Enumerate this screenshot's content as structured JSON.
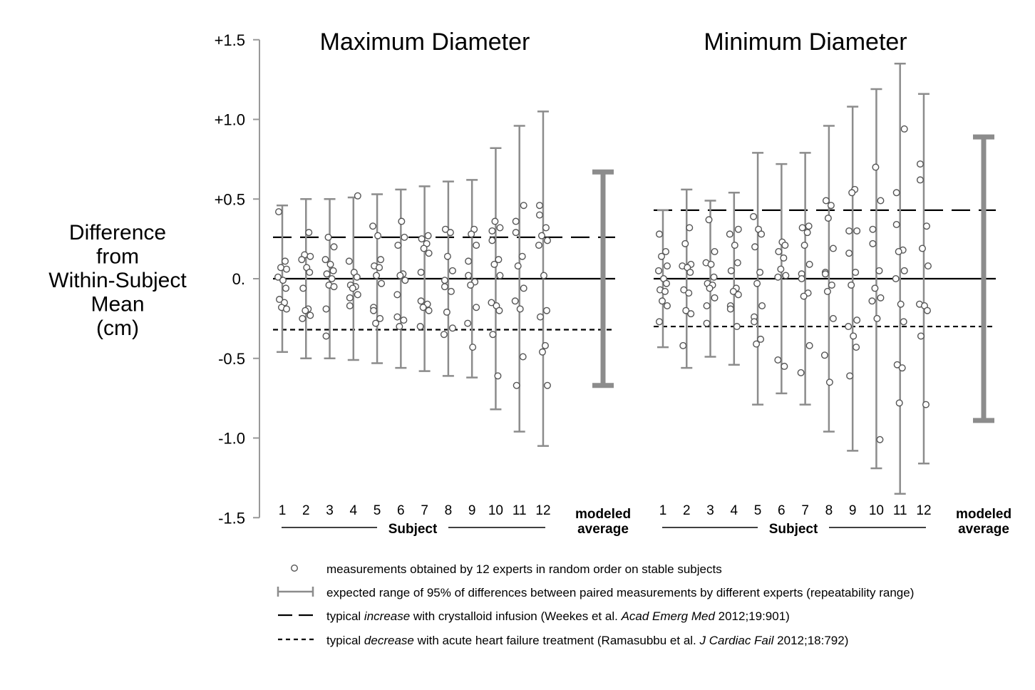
{
  "chart_data": {
    "type": "scatter",
    "ylabel_lines": [
      "Difference",
      "from",
      "Within-Subject",
      "Mean",
      "(cm)"
    ],
    "y_ticks": [
      {
        "value": 1.5,
        "label": "+1.5"
      },
      {
        "value": 1.0,
        "label": "+1.0"
      },
      {
        "value": 0.5,
        "label": "+0.5"
      },
      {
        "value": 0.0,
        "label": "0."
      },
      {
        "value": -0.5,
        "label": "-0.5"
      },
      {
        "value": -1.0,
        "label": "-1.0"
      },
      {
        "value": -1.5,
        "label": "-1.5"
      }
    ],
    "ylim": [
      -1.5,
      1.5
    ],
    "subject_axis_label": "Subject",
    "modeled_label_lines": [
      "modeled",
      "average"
    ],
    "panels": [
      {
        "title": "Maximum Diameter",
        "increase_line": 0.26,
        "decrease_line": -0.32,
        "modeled_average_range": 0.67,
        "subjects": [
          {
            "label": "1",
            "range": 0.46,
            "points": [
              0.42,
              0.11,
              0.07,
              0.06,
              0.01,
              -0.01,
              -0.06,
              -0.13,
              -0.15,
              -0.18,
              -0.19
            ]
          },
          {
            "label": "2",
            "range": 0.5,
            "points": [
              0.29,
              0.15,
              0.14,
              0.12,
              0.07,
              0.04,
              -0.06,
              -0.19,
              -0.2,
              -0.23,
              -0.25
            ]
          },
          {
            "label": "3",
            "range": 0.5,
            "points": [
              0.26,
              0.2,
              0.12,
              0.09,
              0.05,
              0.03,
              0.0,
              -0.04,
              -0.05,
              -0.19,
              -0.36
            ]
          },
          {
            "label": "4",
            "range": 0.51,
            "points": [
              0.52,
              0.11,
              0.04,
              0.01,
              -0.04,
              -0.05,
              -0.06,
              -0.1,
              -0.12,
              -0.17
            ]
          },
          {
            "label": "5",
            "range": 0.53,
            "points": [
              0.33,
              0.27,
              0.12,
              0.08,
              0.07,
              0.02,
              -0.03,
              -0.18,
              -0.2,
              -0.25,
              -0.28
            ]
          },
          {
            "label": "6",
            "range": 0.56,
            "points": [
              0.36,
              0.26,
              0.21,
              0.03,
              0.02,
              -0.01,
              -0.1,
              -0.24,
              -0.26,
              -0.3
            ]
          },
          {
            "label": "7",
            "range": 0.58,
            "points": [
              0.27,
              0.25,
              0.22,
              0.19,
              0.16,
              0.04,
              -0.14,
              -0.16,
              -0.18,
              -0.2,
              -0.3
            ]
          },
          {
            "label": "8",
            "range": 0.61,
            "points": [
              0.31,
              0.29,
              0.14,
              0.05,
              -0.01,
              -0.05,
              -0.08,
              -0.21,
              -0.31,
              -0.35
            ]
          },
          {
            "label": "9",
            "range": 0.62,
            "points": [
              0.31,
              0.28,
              0.21,
              0.11,
              0.02,
              -0.02,
              -0.04,
              -0.18,
              -0.28,
              -0.43
            ]
          },
          {
            "label": "10",
            "range": 0.82,
            "points": [
              0.36,
              0.32,
              0.3,
              0.24,
              0.12,
              0.09,
              0.02,
              -0.15,
              -0.17,
              -0.2,
              -0.35,
              -0.61
            ]
          },
          {
            "label": "11",
            "range": 0.96,
            "points": [
              0.46,
              0.36,
              0.29,
              0.14,
              0.08,
              -0.06,
              -0.14,
              -0.19,
              -0.49,
              -0.67
            ]
          },
          {
            "label": "12",
            "range": 1.05,
            "points": [
              0.46,
              0.4,
              0.32,
              0.27,
              0.24,
              0.21,
              0.02,
              -0.2,
              -0.24,
              -0.42,
              -0.46,
              -0.67
            ]
          }
        ]
      },
      {
        "title": "Minimum Diameter",
        "increase_line": 0.43,
        "decrease_line": -0.3,
        "modeled_average_range": 0.89,
        "subjects": [
          {
            "label": "1",
            "range": 0.43,
            "points": [
              0.28,
              0.17,
              0.14,
              0.08,
              0.05,
              0.0,
              -0.03,
              -0.07,
              -0.08,
              -0.14,
              -0.17,
              -0.27
            ]
          },
          {
            "label": "2",
            "range": 0.56,
            "points": [
              0.32,
              0.22,
              0.09,
              0.08,
              0.07,
              0.04,
              -0.07,
              -0.09,
              -0.2,
              -0.22,
              -0.42
            ]
          },
          {
            "label": "3",
            "range": 0.49,
            "points": [
              0.37,
              0.17,
              0.1,
              0.09,
              0.01,
              -0.03,
              -0.04,
              -0.06,
              -0.12,
              -0.17,
              -0.28
            ]
          },
          {
            "label": "4",
            "range": 0.54,
            "points": [
              0.31,
              0.28,
              0.21,
              0.1,
              0.05,
              -0.06,
              -0.08,
              -0.1,
              -0.17,
              -0.19,
              -0.3
            ]
          },
          {
            "label": "5",
            "range": 0.79,
            "points": [
              0.39,
              0.31,
              0.28,
              0.2,
              0.04,
              -0.03,
              -0.17,
              -0.24,
              -0.27,
              -0.38,
              -0.41
            ]
          },
          {
            "label": "6",
            "range": 0.72,
            "points": [
              0.23,
              0.21,
              0.17,
              0.13,
              0.06,
              0.02,
              0.01,
              -0.51,
              -0.55
            ]
          },
          {
            "label": "7",
            "range": 0.79,
            "points": [
              0.33,
              0.32,
              0.29,
              0.21,
              0.09,
              0.03,
              0.0,
              -0.09,
              -0.11,
              -0.42,
              -0.59
            ]
          },
          {
            "label": "8",
            "range": 0.96,
            "points": [
              0.49,
              0.46,
              0.38,
              0.19,
              0.04,
              0.03,
              -0.04,
              -0.08,
              -0.25,
              -0.48,
              -0.65
            ]
          },
          {
            "label": "9",
            "range": 1.08,
            "points": [
              0.56,
              0.54,
              0.3,
              0.3,
              0.16,
              0.04,
              -0.04,
              -0.26,
              -0.3,
              -0.36,
              -0.43,
              -0.61
            ]
          },
          {
            "label": "10",
            "range": 1.19,
            "points": [
              0.7,
              0.49,
              0.31,
              0.22,
              0.05,
              -0.06,
              -0.12,
              -0.14,
              -0.25,
              -1.01
            ]
          },
          {
            "label": "11",
            "range": 1.35,
            "points": [
              0.94,
              0.54,
              0.34,
              0.18,
              0.17,
              0.05,
              0.0,
              -0.16,
              -0.27,
              -0.54,
              -0.56,
              -0.78
            ]
          },
          {
            "label": "12",
            "range": 1.16,
            "points": [
              0.72,
              0.62,
              0.33,
              0.19,
              0.08,
              -0.16,
              -0.17,
              -0.2,
              -0.36,
              -0.79
            ]
          }
        ]
      }
    ],
    "legend": [
      {
        "symbol": "circle",
        "parts": [
          {
            "t": "measurements obtained by 12 experts in random order on stable subjects",
            "i": false
          }
        ]
      },
      {
        "symbol": "errorbar",
        "parts": [
          {
            "t": "expected range of 95% of differences between paired measurements by different experts (repeatability range)",
            "i": false
          }
        ]
      },
      {
        "symbol": "dashed",
        "parts": [
          {
            "t": "typical ",
            "i": false
          },
          {
            "t": "increase",
            "i": true
          },
          {
            "t": " with crystalloid infusion (Weekes et al. ",
            "i": false
          },
          {
            "t": "Acad Emerg Med",
            "i": true
          },
          {
            "t": " 2012;19:901)",
            "i": false
          }
        ]
      },
      {
        "symbol": "dotted",
        "parts": [
          {
            "t": "typical ",
            "i": false
          },
          {
            "t": "decrease",
            "i": true
          },
          {
            "t": " with acute heart failure treatment (Ramasubbu et al. ",
            "i": false
          },
          {
            "t": "J Cardiac Fail",
            "i": true
          },
          {
            "t": " 2012;18:792)",
            "i": false
          }
        ]
      }
    ]
  }
}
